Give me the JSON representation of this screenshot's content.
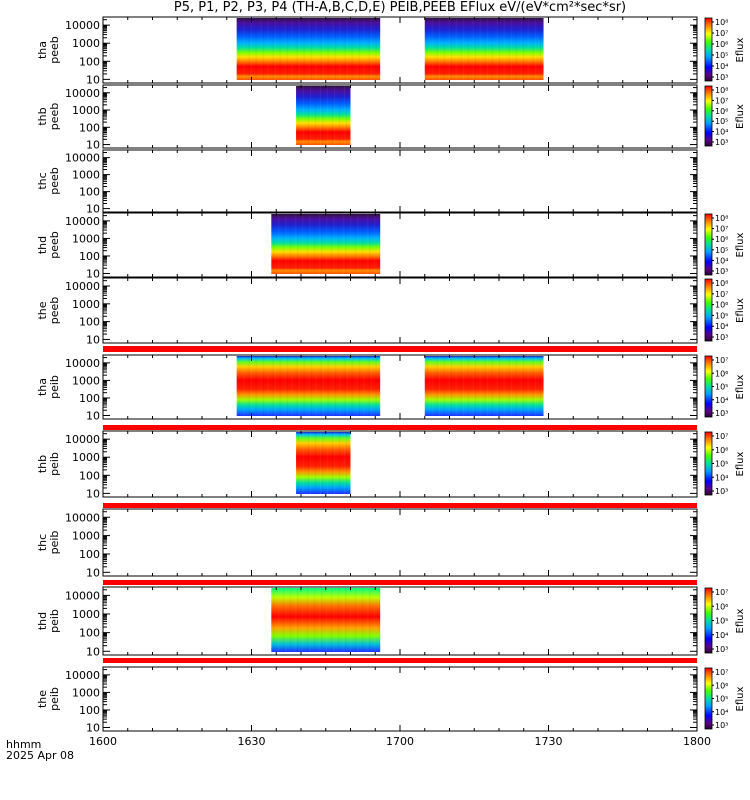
{
  "title": "P5, P1, P2, P3, P4 (TH-A,B,C,D,E) PEIB,PEEB EFlux eV/(eV*cm²*sec*sr)",
  "time_axis": {
    "label_unit": "hhmm",
    "date": "2025 Apr 08",
    "ticks": [
      "1600",
      "1630",
      "1700",
      "1730",
      "1800"
    ]
  },
  "chart_data": {
    "type": "heatmap",
    "title": "P5, P1, P2, P3, P4 (TH-A,B,C,D,E) PEIB,PEEB EFlux eV/(eV*cm²*sec*sr)",
    "x_unit": "hhmm",
    "x_range": [
      "16:00",
      "18:00"
    ],
    "y_scale": "log",
    "y_ticks": [
      "10",
      "100",
      "1000",
      "10000"
    ],
    "colorbar_label": "Eflux",
    "panels": [
      {
        "id": "tha_peeb",
        "label_lines": [
          "tha",
          "peeb"
        ],
        "species": "electron",
        "data_intervals": [
          [
            "16:27",
            "16:56"
          ],
          [
            "17:05",
            "17:29"
          ]
        ],
        "colorbar": {
          "log_min": 3,
          "log_max": 8,
          "labels": [
            "10³",
            "10⁴",
            "10⁵",
            "10⁶",
            "10⁷",
            "10⁸"
          ]
        }
      },
      {
        "id": "thb_peeb",
        "label_lines": [
          "thb",
          "peeb"
        ],
        "species": "electron",
        "data_intervals": [
          [
            "16:39",
            "16:50"
          ]
        ],
        "colorbar": {
          "log_min": 3,
          "log_max": 8,
          "labels": [
            "10³",
            "10⁴",
            "10⁵",
            "10⁶",
            "10⁷",
            "10⁸"
          ]
        }
      },
      {
        "id": "thc_peeb",
        "label_lines": [
          "thc",
          "peeb"
        ],
        "species": "electron",
        "data_intervals": [],
        "colorbar": null
      },
      {
        "id": "thd_peeb",
        "label_lines": [
          "thd",
          "peeb"
        ],
        "species": "electron",
        "data_intervals": [
          [
            "16:34",
            "16:56"
          ]
        ],
        "colorbar": {
          "log_min": 3,
          "log_max": 8,
          "labels": [
            "10³",
            "10⁴",
            "10⁵",
            "10⁶",
            "10⁷",
            "10⁸"
          ]
        }
      },
      {
        "id": "the_peeb",
        "label_lines": [
          "the",
          "peeb"
        ],
        "species": "electron",
        "data_intervals": [],
        "colorbar": {
          "log_min": 3,
          "log_max": 8,
          "labels": [
            "10³",
            "10⁴",
            "10⁵",
            "10⁶",
            "10⁷",
            "10⁸"
          ]
        }
      },
      {
        "id": "tha_peib",
        "label_lines": [
          "tha",
          "peib"
        ],
        "species": "ion",
        "data_intervals": [
          [
            "16:27",
            "16:56"
          ],
          [
            "17:05",
            "17:29"
          ]
        ],
        "colorbar": {
          "log_min": 3,
          "log_max": 7,
          "labels": [
            "10³",
            "10⁴",
            "10⁵",
            "10⁶",
            "10⁷"
          ]
        }
      },
      {
        "id": "thb_peib",
        "label_lines": [
          "thb",
          "peib"
        ],
        "species": "ion",
        "data_intervals": [
          [
            "16:39",
            "16:50"
          ]
        ],
        "colorbar": {
          "log_min": 3,
          "log_max": 7,
          "labels": [
            "10³",
            "10⁴",
            "10⁵",
            "10⁶",
            "10⁷"
          ]
        }
      },
      {
        "id": "thc_peib",
        "label_lines": [
          "thc",
          "peib"
        ],
        "species": "ion",
        "data_intervals": [],
        "colorbar": null
      },
      {
        "id": "thd_peib",
        "label_lines": [
          "thd",
          "peib"
        ],
        "species": "ion",
        "data_intervals": [
          [
            "16:34",
            "16:56"
          ]
        ],
        "colorbar": {
          "log_min": 3,
          "log_max": 7,
          "labels": [
            "10³",
            "10⁴",
            "10⁵",
            "10⁶",
            "10⁷"
          ]
        }
      },
      {
        "id": "the_peib",
        "label_lines": [
          "the",
          "peib"
        ],
        "species": "ion",
        "data_intervals": [],
        "colorbar": {
          "log_min": 3,
          "log_max": 7,
          "labels": [
            "10³",
            "10⁴",
            "10⁵",
            "10⁶",
            "10⁷"
          ]
        }
      }
    ],
    "separator_color": "#ff0000"
  }
}
